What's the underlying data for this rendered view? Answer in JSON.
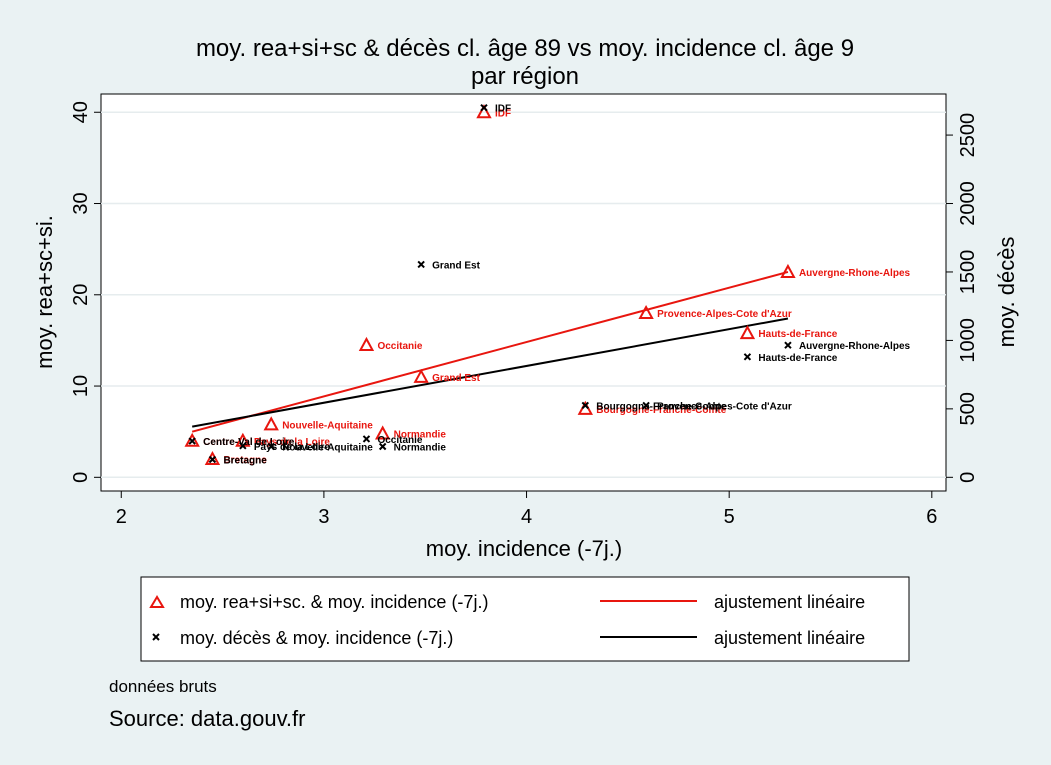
{
  "chart_data": {
    "type": "scatter",
    "title": "moy. rea+si+sc & décès cl. âge 89 vs moy. incidence cl. âge 9",
    "subtitle": "par région",
    "xlabel": "moy. incidence (-7j.)",
    "ylabel_left": "moy. rea+sc+si.",
    "ylabel_right": "moy. décès",
    "xlim": [
      1.9,
      6.07
    ],
    "ylim_left": [
      -1.5,
      42
    ],
    "ylim_right": [
      -100,
      2800
    ],
    "xticks": [
      "2",
      "3",
      "4",
      "5",
      "6"
    ],
    "xtick_values": [
      2,
      3,
      4,
      5,
      6
    ],
    "yticks_left": [
      "0",
      "10",
      "20",
      "30",
      "40"
    ],
    "ytick_values_left": [
      0,
      10,
      20,
      30,
      40
    ],
    "yticks_right": [
      "0",
      "500",
      "1000",
      "1500",
      "2000",
      "2500"
    ],
    "ytick_values_right": [
      0,
      500,
      1000,
      1500,
      2000,
      2500
    ],
    "grid": true,
    "series": [
      {
        "name": "moy. rea+si+sc. & moy. incidence (-7j.)",
        "axis": "left",
        "marker": "triangle",
        "color": "#e8160f",
        "points": [
          {
            "label": "IDF",
            "x": 3.79,
            "y": 40.0
          },
          {
            "label": "Auvergne-Rhone-Alpes",
            "x": 5.29,
            "y": 22.5
          },
          {
            "label": "Provence-Alpes-Cote d'Azur",
            "x": 4.59,
            "y": 18.0
          },
          {
            "label": "Hauts-de-France",
            "x": 5.09,
            "y": 15.8
          },
          {
            "label": "Occitanie",
            "x": 3.21,
            "y": 14.5
          },
          {
            "label": "Grand Est",
            "x": 3.48,
            "y": 11.0
          },
          {
            "label": "Bourgogne-Franche-Comte",
            "x": 4.29,
            "y": 7.5
          },
          {
            "label": "Nouvelle-Aquitaine",
            "x": 2.74,
            "y": 5.8
          },
          {
            "label": "Normandie",
            "x": 3.29,
            "y": 4.8
          },
          {
            "label": "Centre-Val de Loire",
            "x": 2.35,
            "y": 4.0
          },
          {
            "label": "Pays de la Loire",
            "x": 2.6,
            "y": 4.0
          },
          {
            "label": "Bretagne",
            "x": 2.45,
            "y": 2.0
          }
        ]
      },
      {
        "name": "moy. décès & moy. incidence (-7j.)",
        "axis": "right",
        "marker": "x",
        "color": "#000000",
        "points": [
          {
            "label": "IDF",
            "x": 3.79,
            "y": 2700
          },
          {
            "label": "Grand Est",
            "x": 3.48,
            "y": 1555
          },
          {
            "label": "Auvergne-Rhone-Alpes",
            "x": 5.29,
            "y": 965
          },
          {
            "label": "Hauts-de-France",
            "x": 5.09,
            "y": 880
          },
          {
            "label": "Bourgogne-Franche-Comte",
            "x": 4.29,
            "y": 525
          },
          {
            "label": "Provence-Alpes-Cote d'Azur",
            "x": 4.59,
            "y": 525
          },
          {
            "label": "Occitanie",
            "x": 3.21,
            "y": 280
          },
          {
            "label": "Normandie",
            "x": 3.29,
            "y": 225
          },
          {
            "label": "Nouvelle-Aquitaine",
            "x": 2.74,
            "y": 225
          },
          {
            "label": "Pays de la Loire",
            "x": 2.6,
            "y": 230
          },
          {
            "label": "Centre-Val de Loire",
            "x": 2.35,
            "y": 265
          },
          {
            "label": "Bretagne",
            "x": 2.45,
            "y": 130
          }
        ]
      }
    ],
    "fits": [
      {
        "name": "ajustement linéaire",
        "color": "#e8160f",
        "axis": "left",
        "x": [
          2.35,
          5.29
        ],
        "y": [
          5.0,
          22.5
        ]
      },
      {
        "name": "ajustement linéaire",
        "color": "#000000",
        "axis": "right",
        "x": [
          2.35,
          5.29
        ],
        "y": [
          370,
          1160
        ]
      }
    ]
  },
  "notes": {
    "line1": "données bruts",
    "line2": "Source: data.gouv.fr"
  }
}
